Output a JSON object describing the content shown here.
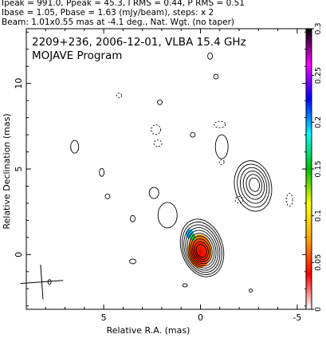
{
  "header": {
    "line1": "Ipeak = 991.0, Ppeak = 45.3, I RMS = 0.44, P RMS = 0.51",
    "line2": "Ibase = 1.05, Pbase = 1.63 (mJy/beam), steps: x 2",
    "line3": "Beam: 1.01x0.55 mas at -4.1 deg., Nat. Wgt. (no taper)"
  },
  "chart_data": {
    "type": "contour",
    "title": "2209+236, 2006-12-01, VLBA 15.4 GHz",
    "subtitle": "MOJAVE Program",
    "xlabel": "Relative R.A. (mas)",
    "ylabel": "Relative Declination (mas)",
    "xlim": [
      9,
      -5.5
    ],
    "ylim": [
      -3.2,
      13.2
    ],
    "x_ticks": [
      5,
      0,
      -5
    ],
    "y_ticks": [
      0,
      5,
      10
    ],
    "colorbar": {
      "min": 0,
      "max": 0.3,
      "ticks": [
        0,
        0.05,
        0.1,
        0.15,
        0.2,
        0.25,
        0.3
      ],
      "colors": [
        "#ffffff",
        "#ff0000",
        "#ffa500",
        "#ffff00",
        "#00c000",
        "#00ffff",
        "#0000ff",
        "#ff00ff",
        "#000000"
      ]
    },
    "contour_base_mJy_per_beam": 1.05,
    "contour_step_factor": 2,
    "sources": [
      {
        "name": "core",
        "x": 0.0,
        "y": 0.2,
        "levels": 10
      },
      {
        "name": "secondary-component",
        "x": -2.8,
        "y": 4.1,
        "levels": 6
      }
    ],
    "beam": {
      "major_mas": 1.01,
      "minor_mas": 0.55,
      "pa_deg": -4.1
    }
  }
}
